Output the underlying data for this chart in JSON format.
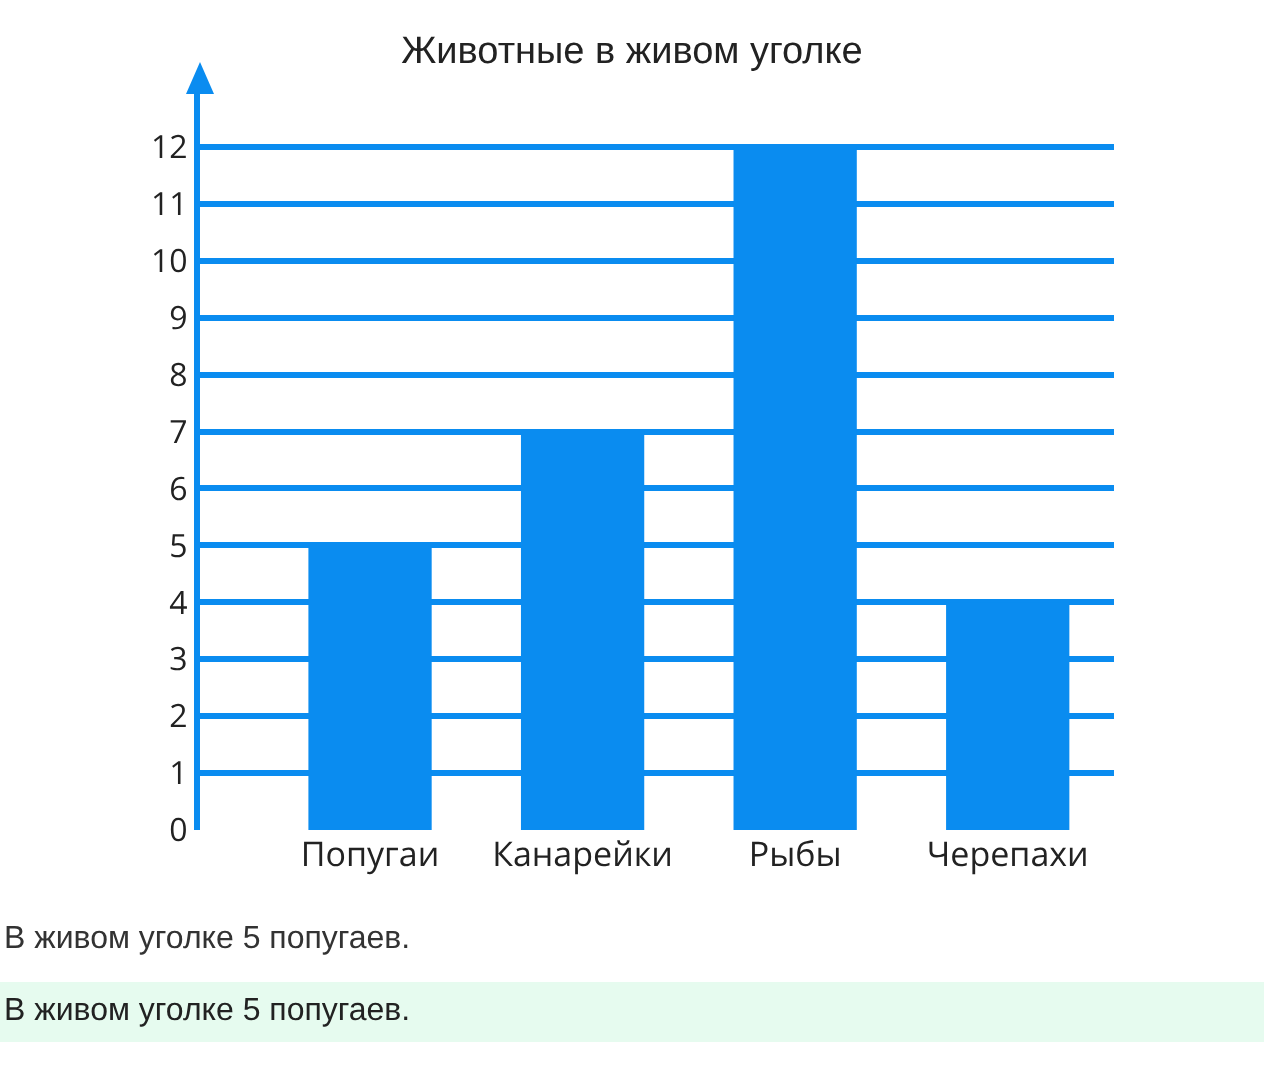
{
  "chart_data": {
    "type": "bar",
    "title": "Животные в живом уголке",
    "categories": [
      "Попугаи",
      "Канарейки",
      "Рыбы",
      "Черепахи"
    ],
    "values": [
      5,
      7,
      12,
      4
    ],
    "color": "#0a8cf0",
    "ylim": [
      0,
      13
    ],
    "yticks": [
      0,
      1,
      2,
      3,
      4,
      5,
      6,
      7,
      8,
      9,
      10,
      11,
      12
    ],
    "grid": "y",
    "annotations": [
      "В живом уголке 5 попугаев.",
      "В живом уголке 5 попугаев."
    ]
  }
}
